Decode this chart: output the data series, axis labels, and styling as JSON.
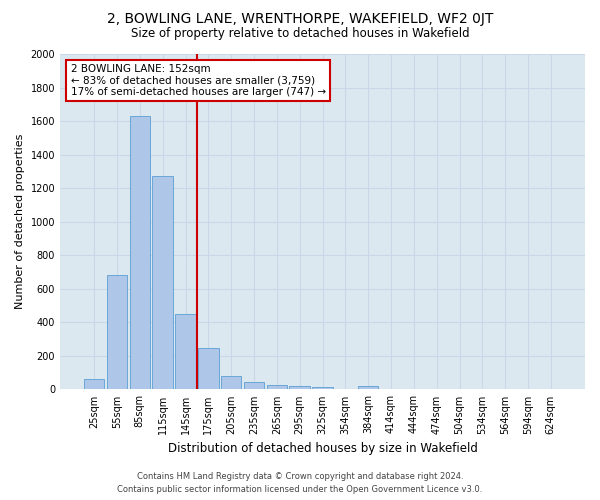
{
  "title_line1": "2, BOWLING LANE, WRENTHORPE, WAKEFIELD, WF2 0JT",
  "title_line2": "Size of property relative to detached houses in Wakefield",
  "xlabel": "Distribution of detached houses by size in Wakefield",
  "ylabel": "Number of detached properties",
  "categories": [
    "25sqm",
    "55sqm",
    "85sqm",
    "115sqm",
    "145sqm",
    "175sqm",
    "205sqm",
    "235sqm",
    "265sqm",
    "295sqm",
    "325sqm",
    "354sqm",
    "384sqm",
    "414sqm",
    "444sqm",
    "474sqm",
    "504sqm",
    "534sqm",
    "564sqm",
    "594sqm",
    "624sqm"
  ],
  "values": [
    65,
    680,
    1630,
    1270,
    450,
    245,
    80,
    47,
    28,
    22,
    15,
    0,
    20,
    0,
    0,
    0,
    0,
    0,
    0,
    0,
    0
  ],
  "bar_color": "#aec6e8",
  "bar_edge_color": "#5a9fd4",
  "annotation_line1": "2 BOWLING LANE: 152sqm",
  "annotation_line2": "← 83% of detached houses are smaller (3,759)",
  "annotation_line3": "17% of semi-detached houses are larger (747) →",
  "annotation_box_color": "#ffffff",
  "annotation_box_edge": "#cc0000",
  "red_line_color": "#cc0000",
  "ylim": [
    0,
    2000
  ],
  "yticks": [
    0,
    200,
    400,
    600,
    800,
    1000,
    1200,
    1400,
    1600,
    1800,
    2000
  ],
  "grid_color": "#c8d8e8",
  "background_color": "#dce8f0",
  "footer_line1": "Contains HM Land Registry data © Crown copyright and database right 2024.",
  "footer_line2": "Contains public sector information licensed under the Open Government Licence v3.0."
}
